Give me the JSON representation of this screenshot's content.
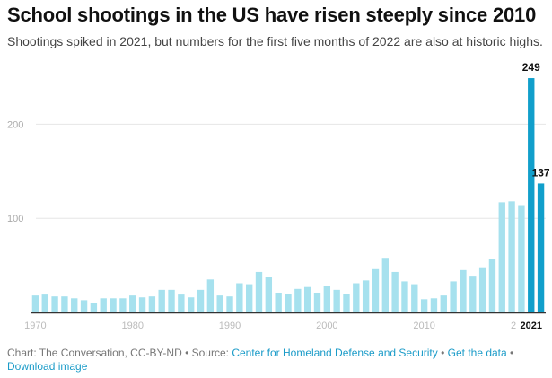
{
  "header": {
    "title": "School shootings in the US have risen steeply since 2010",
    "subtitle": "Shootings spiked in 2021, but numbers for the first five months of 2022 are also at historic highs."
  },
  "colors": {
    "bar": "#a6e1ee",
    "highlight": "#119fcb",
    "grid": "#e6e6e6",
    "axis": "#333333"
  },
  "footer": {
    "credit": "Chart: The Conversation, CC-BY-ND",
    "sep1": " • Source: ",
    "source_link": "Center for Homeland Defense and Security",
    "sep2": " • ",
    "data_link": "Get the data",
    "sep3": " • ",
    "download_link": "Download image"
  },
  "chart_data": {
    "type": "bar",
    "title": "School shootings in the US have risen steeply since 2010",
    "subtitle": "Shootings spiked in 2021, but numbers for the first five months of 2022 are also at historic highs.",
    "xlabel": "",
    "ylabel": "",
    "ylim": [
      0,
      250
    ],
    "yticks": [
      100,
      200
    ],
    "grid": true,
    "xtick_labels": [
      "1970",
      "1980",
      "1990",
      "2000",
      "2010",
      "2",
      "2021"
    ],
    "emphasized_xtick": "2021",
    "categories": [
      1970,
      1971,
      1972,
      1973,
      1974,
      1975,
      1976,
      1977,
      1978,
      1979,
      1980,
      1981,
      1982,
      1983,
      1984,
      1985,
      1986,
      1987,
      1988,
      1989,
      1990,
      1991,
      1992,
      1993,
      1994,
      1995,
      1996,
      1997,
      1998,
      1999,
      2000,
      2001,
      2002,
      2003,
      2004,
      2005,
      2006,
      2007,
      2008,
      2009,
      2010,
      2011,
      2012,
      2013,
      2014,
      2015,
      2016,
      2017,
      2018,
      2019,
      2020,
      2021,
      2022
    ],
    "values": [
      18,
      19,
      17,
      17,
      15,
      13,
      10,
      15,
      15,
      15,
      18,
      16,
      17,
      24,
      24,
      19,
      16,
      24,
      35,
      18,
      17,
      31,
      30,
      43,
      38,
      21,
      20,
      25,
      27,
      21,
      28,
      24,
      20,
      31,
      34,
      46,
      58,
      43,
      33,
      30,
      14,
      15,
      18,
      33,
      45,
      39,
      48,
      57,
      117,
      118,
      114,
      249,
      137
    ],
    "highlighted": [
      2021,
      2022
    ],
    "data_labels": [
      {
        "category": 2021,
        "text": "249"
      },
      {
        "category": 2022,
        "text": "137"
      }
    ]
  }
}
